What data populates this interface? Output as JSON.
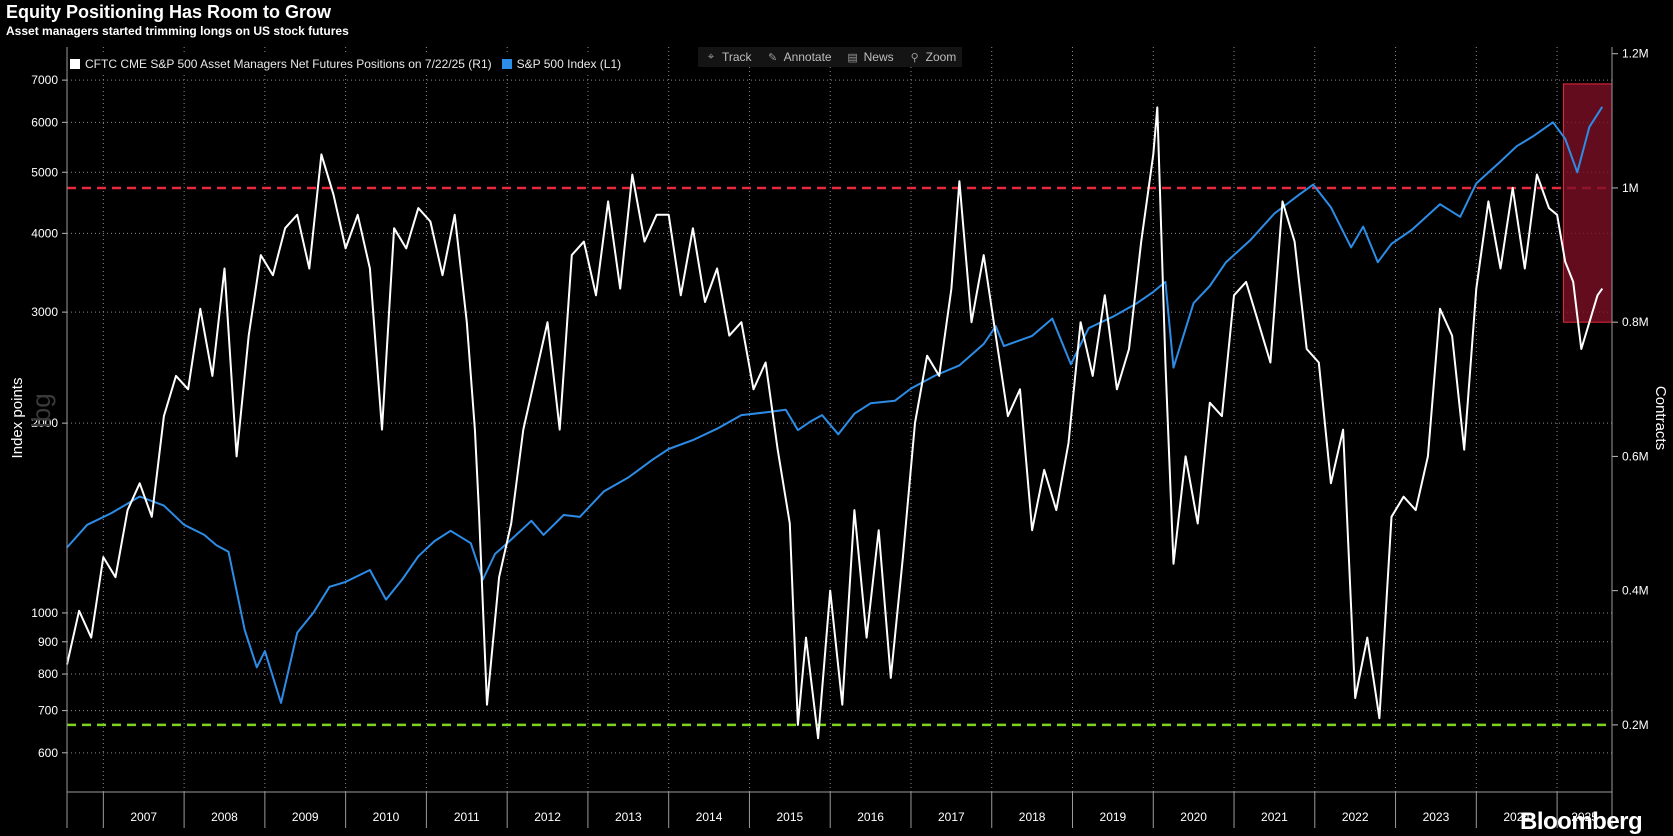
{
  "title": "Equity Positioning Has Room to Grow",
  "subtitle": "Asset managers started trimming longs on US stock futures",
  "toolbar": [
    {
      "label": "Track",
      "icon": "crosshair-icon",
      "glyph": "⌖"
    },
    {
      "label": "Annotate",
      "icon": "pencil-icon",
      "glyph": "✎"
    },
    {
      "label": "News",
      "icon": "news-icon",
      "glyph": "▤"
    },
    {
      "label": "Zoom",
      "icon": "magnifier-icon",
      "glyph": "⚲"
    }
  ],
  "brand": "Bloomberg",
  "watermark": "lbg",
  "chart_data": {
    "type": "line",
    "x_range": [
      2006.55,
      2025.68
    ],
    "x_ticks": [
      "2007",
      "2008",
      "2009",
      "2010",
      "2011",
      "2012",
      "2013",
      "2014",
      "2015",
      "2016",
      "2017",
      "2018",
      "2019",
      "2020",
      "2021",
      "2022",
      "2023",
      "2024",
      "2025"
    ],
    "left_axis": {
      "label": "Index points",
      "scale": "log",
      "range": [
        520,
        7900
      ],
      "ticks": [
        600,
        700,
        800,
        900,
        1000,
        2000,
        3000,
        4000,
        5000,
        6000,
        7000
      ],
      "tick_labels": [
        "600",
        "700",
        "800",
        "900",
        "1000",
        "2000",
        "3000",
        "4000",
        "5000",
        "6000",
        "7000"
      ]
    },
    "right_axis": {
      "label": "Contracts",
      "scale": "linear",
      "range": [
        100000,
        1210000
      ],
      "ticks": [
        200000,
        400000,
        600000,
        800000,
        1000000,
        1200000
      ],
      "tick_labels": [
        "0.2M",
        "0.4M",
        "0.6M",
        "0.8M",
        "1M",
        "1.2M"
      ]
    },
    "grid": true,
    "legend_position": "top-left",
    "series": [
      {
        "name": "CFTC CME S&P 500 Asset Managers Net Futures Positions on 7/22/25 (R1)",
        "axis": "right",
        "color": "#ffffff",
        "x": [
          2006.55,
          2006.7,
          2006.85,
          2007.0,
          2007.15,
          2007.3,
          2007.45,
          2007.6,
          2007.75,
          2007.9,
          2008.05,
          2008.2,
          2008.35,
          2008.5,
          2008.65,
          2008.8,
          2008.95,
          2009.1,
          2009.25,
          2009.4,
          2009.55,
          2009.7,
          2009.85,
          2010.0,
          2010.15,
          2010.3,
          2010.45,
          2010.6,
          2010.75,
          2010.9,
          2011.05,
          2011.2,
          2011.35,
          2011.5,
          2011.6,
          2011.65,
          2011.75,
          2011.9,
          2012.05,
          2012.2,
          2012.35,
          2012.5,
          2012.65,
          2012.8,
          2012.95,
          2013.1,
          2013.25,
          2013.4,
          2013.55,
          2013.7,
          2013.85,
          2014.0,
          2014.15,
          2014.3,
          2014.45,
          2014.6,
          2014.75,
          2014.9,
          2015.05,
          2015.2,
          2015.35,
          2015.5,
          2015.6,
          2015.7,
          2015.85,
          2016.0,
          2016.15,
          2016.3,
          2016.45,
          2016.6,
          2016.75,
          2016.9,
          2017.05,
          2017.2,
          2017.35,
          2017.5,
          2017.6,
          2017.75,
          2017.9,
          2018.05,
          2018.2,
          2018.35,
          2018.5,
          2018.65,
          2018.8,
          2018.95,
          2019.1,
          2019.25,
          2019.4,
          2019.55,
          2019.7,
          2019.85,
          2020.0,
          2020.05,
          2020.15,
          2020.25,
          2020.4,
          2020.55,
          2020.7,
          2020.85,
          2021.0,
          2021.15,
          2021.3,
          2021.45,
          2021.6,
          2021.75,
          2021.9,
          2022.05,
          2022.2,
          2022.35,
          2022.5,
          2022.65,
          2022.8,
          2022.95,
          2023.1,
          2023.25,
          2023.4,
          2023.55,
          2023.7,
          2023.85,
          2024.0,
          2024.15,
          2024.3,
          2024.45,
          2024.6,
          2024.75,
          2024.9,
          2025.0,
          2025.1,
          2025.2,
          2025.3,
          2025.4,
          2025.5,
          2025.56
        ],
        "y": [
          290000,
          370000,
          330000,
          450000,
          420000,
          520000,
          560000,
          510000,
          660000,
          720000,
          700000,
          820000,
          720000,
          880000,
          600000,
          780000,
          900000,
          870000,
          940000,
          960000,
          880000,
          1050000,
          990000,
          910000,
          960000,
          880000,
          640000,
          940000,
          910000,
          970000,
          950000,
          870000,
          960000,
          800000,
          640000,
          520000,
          230000,
          420000,
          500000,
          640000,
          720000,
          800000,
          640000,
          900000,
          920000,
          840000,
          980000,
          850000,
          1020000,
          920000,
          960000,
          960000,
          840000,
          940000,
          830000,
          880000,
          780000,
          800000,
          700000,
          740000,
          610000,
          500000,
          200000,
          330000,
          180000,
          400000,
          230000,
          520000,
          330000,
          490000,
          270000,
          450000,
          650000,
          750000,
          720000,
          850000,
          1010000,
          800000,
          900000,
          780000,
          660000,
          700000,
          490000,
          580000,
          520000,
          620000,
          800000,
          720000,
          840000,
          700000,
          760000,
          920000,
          1050000,
          1120000,
          740000,
          440000,
          600000,
          500000,
          680000,
          660000,
          840000,
          860000,
          800000,
          740000,
          980000,
          920000,
          760000,
          740000,
          560000,
          640000,
          240000,
          330000,
          210000,
          510000,
          540000,
          520000,
          600000,
          820000,
          780000,
          610000,
          850000,
          980000,
          880000,
          1000000,
          880000,
          1020000,
          970000,
          960000,
          890000,
          860000,
          760000,
          800000,
          840000,
          850000
        ]
      },
      {
        "name": "S&P 500 Index (L1)",
        "axis": "left",
        "color": "#2d8ce6",
        "x": [
          2006.55,
          2006.8,
          2007.1,
          2007.45,
          2007.75,
          2008.0,
          2008.25,
          2008.4,
          2008.55,
          2008.75,
          2008.9,
          2009.0,
          2009.2,
          2009.4,
          2009.6,
          2009.8,
          2010.0,
          2010.3,
          2010.5,
          2010.7,
          2010.9,
          2011.1,
          2011.3,
          2011.55,
          2011.7,
          2011.85,
          2012.0,
          2012.3,
          2012.45,
          2012.7,
          2012.9,
          2013.2,
          2013.5,
          2013.8,
          2014.0,
          2014.3,
          2014.6,
          2014.9,
          2015.2,
          2015.45,
          2015.6,
          2015.75,
          2015.9,
          2016.1,
          2016.3,
          2016.5,
          2016.8,
          2017.0,
          2017.3,
          2017.6,
          2017.9,
          2018.05,
          2018.15,
          2018.5,
          2018.75,
          2018.98,
          2019.2,
          2019.5,
          2019.8,
          2020.0,
          2020.15,
          2020.25,
          2020.5,
          2020.7,
          2020.9,
          2021.2,
          2021.5,
          2021.8,
          2021.98,
          2022.2,
          2022.45,
          2022.6,
          2022.78,
          2022.95,
          2023.2,
          2023.55,
          2023.8,
          2024.0,
          2024.3,
          2024.5,
          2024.7,
          2024.95,
          2025.1,
          2025.25,
          2025.4,
          2025.56
        ],
        "y": [
          1270,
          1380,
          1440,
          1530,
          1480,
          1380,
          1330,
          1280,
          1250,
          940,
          820,
          870,
          720,
          930,
          1000,
          1100,
          1120,
          1170,
          1050,
          1130,
          1230,
          1300,
          1350,
          1290,
          1130,
          1240,
          1290,
          1400,
          1330,
          1430,
          1420,
          1560,
          1640,
          1750,
          1820,
          1880,
          1960,
          2060,
          2080,
          2100,
          1950,
          2010,
          2060,
          1920,
          2070,
          2150,
          2170,
          2270,
          2380,
          2470,
          2670,
          2850,
          2650,
          2750,
          2930,
          2480,
          2830,
          2950,
          3100,
          3230,
          3350,
          2450,
          3100,
          3300,
          3600,
          3900,
          4300,
          4600,
          4780,
          4400,
          3800,
          4100,
          3600,
          3850,
          4050,
          4450,
          4250,
          4800,
          5200,
          5500,
          5700,
          6000,
          5650,
          5000,
          5900,
          6350
        ]
      }
    ],
    "reference_lines": [
      {
        "axis": "right",
        "value": 1000000,
        "color": "#e8283c",
        "style": "dashed"
      },
      {
        "axis": "right",
        "value": 200000,
        "color": "#7ed321",
        "style": "dashed"
      }
    ],
    "highlight": {
      "x_range": [
        2025.08,
        2025.68
      ],
      "y_range_right": [
        800000,
        1155000
      ],
      "fill": "#7a0f25",
      "stroke": "#e8283c"
    }
  }
}
